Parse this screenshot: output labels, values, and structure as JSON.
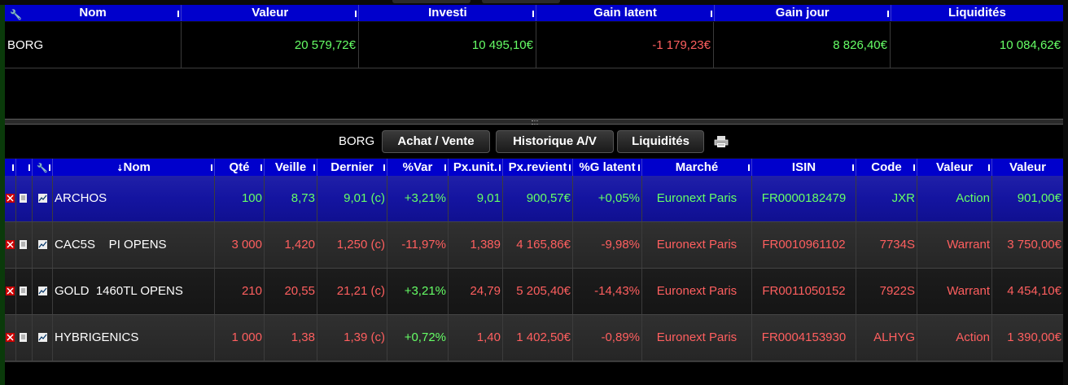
{
  "summary": {
    "headers": [
      "Nom",
      "Valeur",
      "Investi",
      "Gain latent",
      "Gain jour",
      "Liquidités"
    ],
    "row": {
      "nom": "BORG",
      "valeur": "20 579,72€",
      "investi": "10 495,10€",
      "gain_latent": "-1 179,23€",
      "gain_jour": "8 826,40€",
      "liquidites": "10 084,62€"
    }
  },
  "toolbar": {
    "account_label": "BORG",
    "buy_sell_label": "Achat / Vente",
    "history_label": "Historique A/V",
    "cash_label": "Liquidités",
    "print_icon": "printer-icon"
  },
  "positions": {
    "headers": {
      "nom": "Nom",
      "qte": "Qté",
      "veille": "Veille",
      "dernier": "Dernier",
      "var": "%Var",
      "px_unit": "Px.unit.",
      "px_revient": "Px.revient",
      "g_latent": "%G latent",
      "marche": "Marché",
      "isin": "ISIN",
      "code": "Code",
      "valeur_type": "Valeur",
      "valeur": "Valeur"
    },
    "rows": [
      {
        "nom": "ARCHOS",
        "qte": "100",
        "veille": "8,73",
        "dernier": "9,01 (c)",
        "var": "+3,21%",
        "px_unit": "9,01",
        "px_revient": "900,57€",
        "g_latent": "+0,05%",
        "marche": "Euronext Paris",
        "isin": "FR0000182479",
        "code": "JXR",
        "type": "Action",
        "valeur": "901,00€"
      },
      {
        "nom": "CAC5S    PI OPENS",
        "qte": "3 000",
        "veille": "1,420",
        "dernier": "1,250 (c)",
        "var": "-11,97%",
        "px_unit": "1,389",
        "px_revient": "4 165,86€",
        "g_latent": "-9,98%",
        "marche": "Euronext Paris",
        "isin": "FR0010961102",
        "code": "7734S",
        "type": "Warrant",
        "valeur": "3 750,00€"
      },
      {
        "nom": "GOLD  1460TL OPENS",
        "qte": "210",
        "veille": "20,55",
        "dernier": "21,21 (c)",
        "var": "+3,21%",
        "px_unit": "24,79",
        "px_revient": "5 205,40€",
        "g_latent": "-14,43%",
        "marche": "Euronext Paris",
        "isin": "FR0011050152",
        "code": "7922S",
        "type": "Warrant",
        "valeur": "4 454,10€"
      },
      {
        "nom": "HYBRIGENICS",
        "qte": "1 000",
        "veille": "1,38",
        "dernier": "1,39 (c)",
        "var": "+0,72%",
        "px_unit": "1,40",
        "px_revient": "1 402,50€",
        "g_latent": "-0,89%",
        "marche": "Euronext Paris",
        "isin": "FR0004153930",
        "code": "ALHYG",
        "type": "Action",
        "valeur": "1 390,00€"
      }
    ]
  },
  "colors": {
    "header_blue": "#0000cc",
    "selected_row": "#1414a0",
    "positive": "#66ff66",
    "negative": "#ff5f5f"
  }
}
